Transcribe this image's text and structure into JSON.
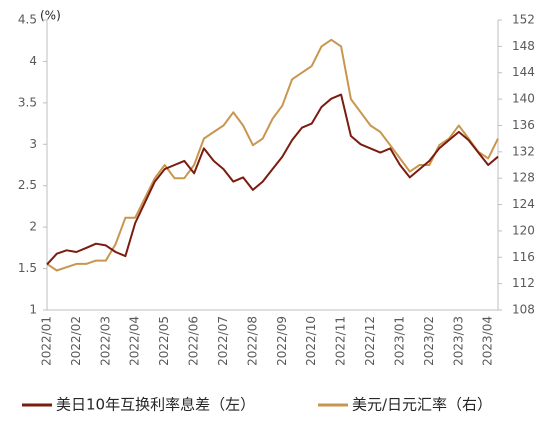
{
  "chart_data": {
    "type": "line",
    "annotation": "(%)",
    "categories": [
      "2022/01",
      null,
      null,
      "2022/02",
      null,
      null,
      "2022/03",
      null,
      null,
      "2022/04",
      null,
      null,
      "2022/05",
      null,
      null,
      "2022/06",
      null,
      null,
      "2022/07",
      null,
      null,
      "2022/08",
      null,
      null,
      "2022/09",
      null,
      null,
      "2022/10",
      null,
      null,
      "2022/11",
      null,
      null,
      "2022/12",
      null,
      null,
      "2023/01",
      null,
      null,
      "2023/02",
      null,
      null,
      "2023/03",
      null,
      null,
      "2023/04",
      null
    ],
    "series": [
      {
        "name": "美日10年互换利率息差（左）",
        "color": "#7b1c10",
        "axis": "y",
        "values": [
          1.55,
          1.68,
          1.72,
          1.7,
          1.75,
          1.8,
          1.78,
          1.7,
          1.65,
          2.05,
          2.3,
          2.55,
          2.7,
          2.75,
          2.8,
          2.65,
          2.95,
          2.8,
          2.7,
          2.55,
          2.6,
          2.45,
          2.55,
          2.7,
          2.85,
          3.05,
          3.2,
          3.25,
          3.45,
          3.55,
          3.6,
          3.1,
          3.0,
          2.95,
          2.9,
          2.95,
          2.75,
          2.6,
          2.7,
          2.8,
          2.95,
          3.05,
          3.15,
          3.05,
          2.9,
          2.75,
          2.85
        ]
      },
      {
        "name": "美元/日元汇率（右）",
        "color": "#c8964e",
        "axis": "y2",
        "values": [
          115,
          114,
          114.5,
          115,
          115,
          115.5,
          115.5,
          118,
          122,
          122,
          125,
          128,
          130,
          128,
          128,
          130,
          134,
          135,
          136,
          138,
          136,
          133,
          134,
          137,
          139,
          143,
          144,
          145,
          148,
          149,
          148,
          140,
          138,
          136,
          135,
          133,
          131,
          129,
          130,
          130,
          133,
          134,
          136,
          134,
          132,
          131,
          134
        ]
      }
    ],
    "ylim": [
      1,
      4.5
    ],
    "yticks": [
      1,
      1.5,
      2,
      2.5,
      3,
      3.5,
      4,
      4.5
    ],
    "y2lim": [
      108,
      152
    ],
    "y2ticks": [
      108,
      112,
      116,
      120,
      124,
      128,
      132,
      136,
      140,
      144,
      148,
      152
    ]
  }
}
